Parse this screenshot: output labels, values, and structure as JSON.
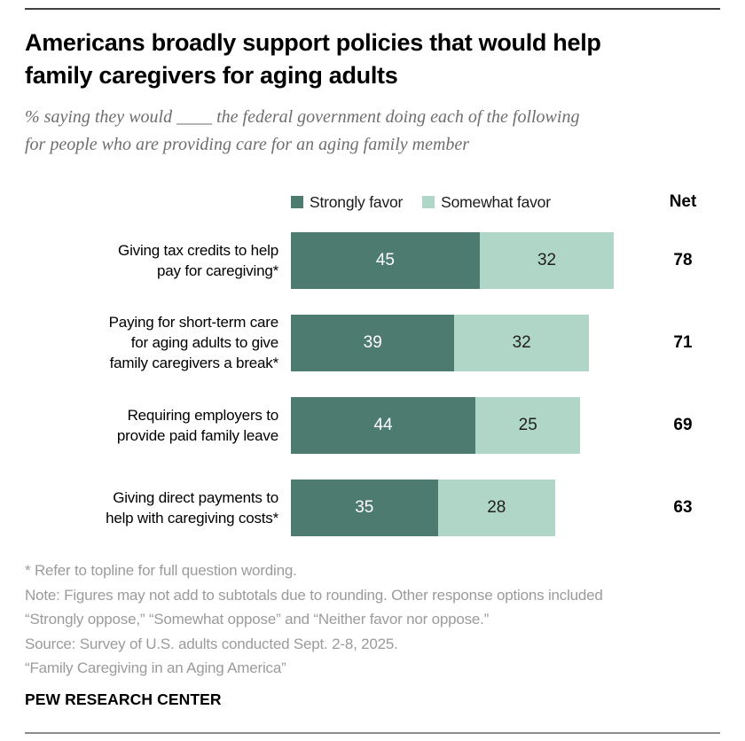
{
  "header": {
    "title": "Americans broadly support policies that would help\nfamily caregivers for aging adults",
    "subtitle": "% saying they would ____ the federal government doing each of the following\nfor people who are providing care for an aging family member"
  },
  "chart_data": {
    "type": "bar",
    "orientation": "horizontal",
    "stacked": true,
    "unit": "percent",
    "categories": [
      "Giving tax credits to help\npay for caregiving*",
      "Paying for short-term care\nfor aging adults to give\nfamily caregivers a break*",
      "Requiring employers to\nprovide paid family leave",
      "Giving direct payments to\nhelp with caregiving costs*"
    ],
    "series": [
      {
        "name": "Strongly favor",
        "color": "#4E7B6F",
        "values": [
          45,
          39,
          44,
          35
        ]
      },
      {
        "name": "Somewhat favor",
        "color": "#AFD6C7",
        "values": [
          32,
          32,
          25,
          28
        ]
      }
    ],
    "net_header": "Net",
    "net_values": [
      78,
      71,
      69,
      63
    ],
    "xlim": [
      0,
      85
    ],
    "grid": false,
    "legend_position": "top",
    "value_labels": "inside-center"
  },
  "notes": {
    "lines": [
      "* Refer to topline for full question wording.",
      "Note: Figures may not add to subtotals due to rounding. Other response options included",
      "“Strongly oppose,” “Somewhat oppose” and “Neither favor nor oppose.”",
      "Source: Survey of U.S. adults conducted Sept. 2-8, 2025.",
      "“Family Caregiving in an Aging America”"
    ]
  },
  "footer": {
    "brand": "PEW RESEARCH CENTER"
  }
}
